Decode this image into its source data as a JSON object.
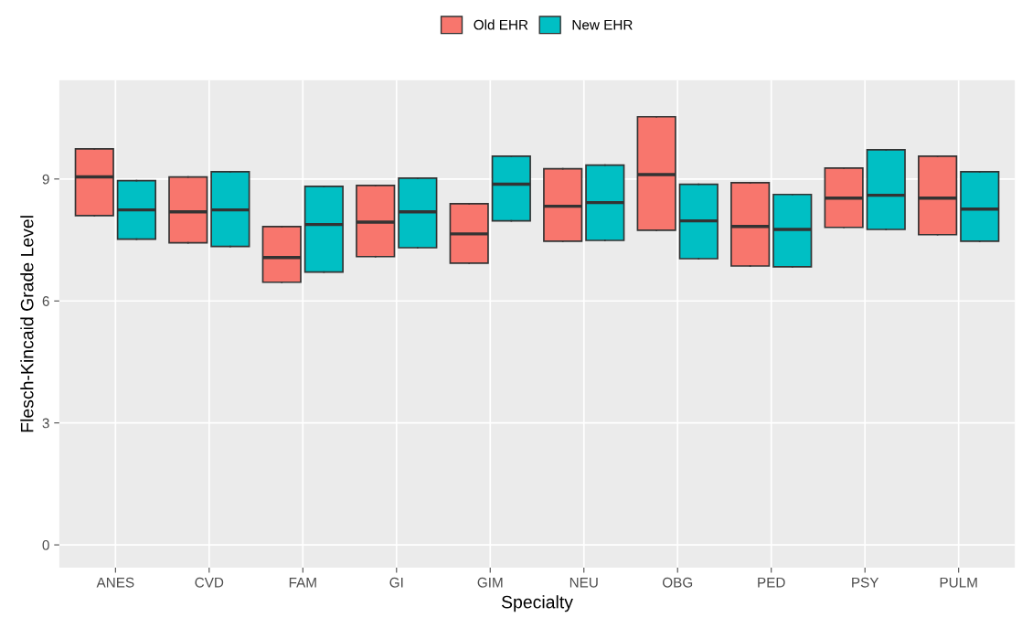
{
  "chart_data": {
    "type": "box",
    "xlabel": "Specialty",
    "ylabel": "Flesch-Kincaid Grade Level",
    "categories": [
      "ANES",
      "CVD",
      "FAM",
      "GI",
      "GIM",
      "NEU",
      "OBG",
      "PED",
      "PSY",
      "PULM"
    ],
    "ylim": [
      -0.56,
      11.43
    ],
    "yticks": [
      0,
      3,
      6,
      9
    ],
    "grid": true,
    "legend": "top",
    "series": [
      {
        "name": "Old EHR",
        "color": "#f8766d",
        "boxes": [
          {
            "low": 8.1,
            "q1": 8.1,
            "median": 9.05,
            "q3": 9.74,
            "high": 9.74
          },
          {
            "low": 7.43,
            "q1": 7.43,
            "median": 8.19,
            "q3": 9.05,
            "high": 9.05
          },
          {
            "low": 6.46,
            "q1": 6.46,
            "median": 7.07,
            "q3": 7.83,
            "high": 7.83
          },
          {
            "low": 7.09,
            "q1": 7.09,
            "median": 7.94,
            "q3": 8.84,
            "high": 8.84
          },
          {
            "low": 6.93,
            "q1": 6.93,
            "median": 7.65,
            "q3": 8.39,
            "high": 8.39
          },
          {
            "low": 7.47,
            "q1": 7.47,
            "median": 8.33,
            "q3": 9.25,
            "high": 9.25
          },
          {
            "low": 7.74,
            "q1": 7.74,
            "median": 9.11,
            "q3": 10.53,
            "high": 10.53
          },
          {
            "low": 6.86,
            "q1": 6.86,
            "median": 7.83,
            "q3": 8.91,
            "high": 8.91
          },
          {
            "low": 7.81,
            "q1": 7.81,
            "median": 8.53,
            "q3": 9.27,
            "high": 9.27
          },
          {
            "low": 7.63,
            "q1": 7.63,
            "median": 8.53,
            "q3": 9.56,
            "high": 9.56
          }
        ]
      },
      {
        "name": "New EHR",
        "color": "#00bfc4",
        "boxes": [
          {
            "low": 7.52,
            "q1": 7.52,
            "median": 8.24,
            "q3": 8.96,
            "high": 8.96
          },
          {
            "low": 7.34,
            "q1": 7.34,
            "median": 8.24,
            "q3": 9.18,
            "high": 9.18
          },
          {
            "low": 6.71,
            "q1": 6.71,
            "median": 7.88,
            "q3": 8.82,
            "high": 8.82
          },
          {
            "low": 7.31,
            "q1": 7.31,
            "median": 8.19,
            "q3": 9.02,
            "high": 9.02
          },
          {
            "low": 7.97,
            "q1": 7.97,
            "median": 8.87,
            "q3": 9.56,
            "high": 9.56
          },
          {
            "low": 7.49,
            "q1": 7.49,
            "median": 8.42,
            "q3": 9.34,
            "high": 9.34
          },
          {
            "low": 7.04,
            "q1": 7.04,
            "median": 7.97,
            "q3": 8.87,
            "high": 8.87
          },
          {
            "low": 6.84,
            "q1": 6.84,
            "median": 7.76,
            "q3": 8.62,
            "high": 8.62
          },
          {
            "low": 7.76,
            "q1": 7.76,
            "median": 8.6,
            "q3": 9.72,
            "high": 9.72
          },
          {
            "low": 7.47,
            "q1": 7.47,
            "median": 8.26,
            "q3": 9.18,
            "high": 9.18
          }
        ]
      }
    ]
  }
}
